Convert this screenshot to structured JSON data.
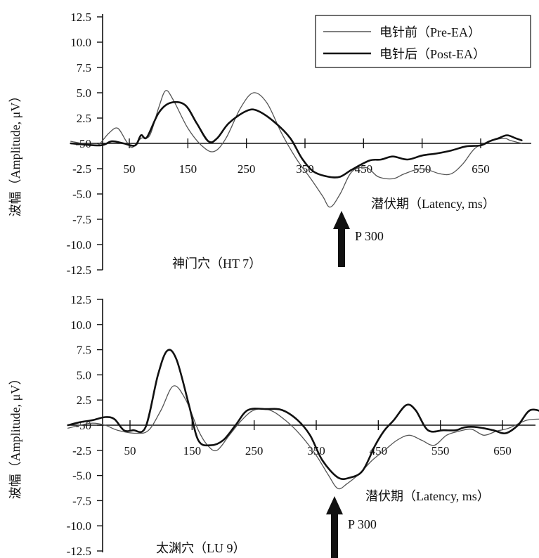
{
  "chart_data": [
    {
      "type": "line",
      "ylabel": "波幅（Amplitude, μV）",
      "xlabel": "潜伏期（Latency, ms）",
      "caption": "神门穴（HT 7）",
      "annotation": "P 300",
      "ylim": [
        -12.5,
        12.5
      ],
      "yticks": [
        "12.5",
        "10.0",
        "7.5",
        "5.0",
        "2.5",
        "-50",
        "-2.5",
        "-5.0",
        "-7.5",
        "-10.0",
        "-12.5"
      ],
      "xticks": [
        "50",
        "150",
        "250",
        "350",
        "450",
        "550",
        "650"
      ],
      "xtick_values": [
        50,
        150,
        250,
        350,
        450,
        550,
        650
      ],
      "xlim": [
        -50,
        720
      ],
      "p300_latency": 390,
      "legend": {
        "position": "top-right",
        "entries": [
          "电针前（Pre-EA）",
          "电针后（Post-EA）"
        ]
      },
      "series": [
        {
          "name": "电针前（Pre-EA）",
          "color": "#555555",
          "style": "thin",
          "points": [
            [
              -50,
              0.2
            ],
            [
              -10,
              -0.2
            ],
            [
              0,
              0
            ],
            [
              15,
              1.0
            ],
            [
              30,
              1.5
            ],
            [
              45,
              0.2
            ],
            [
              55,
              -0.4
            ],
            [
              70,
              0.5
            ],
            [
              85,
              0.8
            ],
            [
              100,
              3.5
            ],
            [
              112,
              5.2
            ],
            [
              125,
              4.3
            ],
            [
              150,
              1.5
            ],
            [
              175,
              -0.3
            ],
            [
              195,
              -0.8
            ],
            [
              215,
              0.5
            ],
            [
              240,
              3.5
            ],
            [
              262,
              5.0
            ],
            [
              285,
              4.0
            ],
            [
              310,
              1.0
            ],
            [
              335,
              -1.5
            ],
            [
              360,
              -3.5
            ],
            [
              380,
              -5.2
            ],
            [
              393,
              -6.3
            ],
            [
              410,
              -5.0
            ],
            [
              430,
              -2.8
            ],
            [
              455,
              -2.4
            ],
            [
              475,
              -3.3
            ],
            [
              500,
              -3.5
            ],
            [
              520,
              -3.0
            ],
            [
              550,
              -2.5
            ],
            [
              580,
              -3.0
            ],
            [
              600,
              -3.0
            ],
            [
              620,
              -2.0
            ],
            [
              640,
              -0.5
            ],
            [
              665,
              0.2
            ],
            [
              690,
              0.5
            ],
            [
              700,
              0.3
            ],
            [
              720,
              0.0
            ]
          ]
        },
        {
          "name": "电针后（Post-EA）",
          "color": "#111111",
          "style": "thick",
          "points": [
            [
              -50,
              0.0
            ],
            [
              0,
              -0.2
            ],
            [
              20,
              0.2
            ],
            [
              40,
              0.0
            ],
            [
              60,
              -0.2
            ],
            [
              70,
              0.8
            ],
            [
              80,
              0.6
            ],
            [
              100,
              3.0
            ],
            [
              120,
              4.0
            ],
            [
              145,
              3.8
            ],
            [
              165,
              2.0
            ],
            [
              185,
              0.2
            ],
            [
              200,
              0.5
            ],
            [
              220,
              2.0
            ],
            [
              250,
              3.2
            ],
            [
              270,
              3.2
            ],
            [
              300,
              2.0
            ],
            [
              325,
              0.5
            ],
            [
              345,
              -1.5
            ],
            [
              365,
              -2.8
            ],
            [
              390,
              -3.3
            ],
            [
              410,
              -3.3
            ],
            [
              430,
              -2.6
            ],
            [
              460,
              -1.7
            ],
            [
              480,
              -1.6
            ],
            [
              500,
              -1.3
            ],
            [
              525,
              -1.6
            ],
            [
              550,
              -1.2
            ],
            [
              575,
              -1.0
            ],
            [
              600,
              -0.7
            ],
            [
              625,
              -0.3
            ],
            [
              650,
              -0.2
            ],
            [
              665,
              0.2
            ],
            [
              680,
              0.5
            ],
            [
              695,
              0.8
            ],
            [
              710,
              0.5
            ],
            [
              720,
              0.3
            ]
          ]
        }
      ]
    },
    {
      "type": "line",
      "ylabel": "波幅（Amplitude, μV）",
      "xlabel": "潜伏期（Latency, ms）",
      "caption": "太渊穴（LU 9）",
      "annotation": "P 300",
      "ylim": [
        -12.5,
        12.5
      ],
      "yticks": [
        "12.5",
        "10.0",
        "7.5",
        "5.0",
        "2.5",
        "-50",
        "-2.5",
        "-5.0",
        "-7.5",
        "-10.0",
        "-12.5"
      ],
      "xticks": [
        "50",
        "150",
        "250",
        "350",
        "450",
        "550",
        "650"
      ],
      "xtick_values": [
        50,
        150,
        250,
        350,
        450,
        550,
        650
      ],
      "xlim": [
        -50,
        720
      ],
      "p300_latency": 385,
      "series": [
        {
          "name": "电针前（Pre-EA）",
          "color": "#555555",
          "style": "thin",
          "points": [
            [
              -50,
              -0.3
            ],
            [
              -30,
              0.0
            ],
            [
              -10,
              0.2
            ],
            [
              10,
              0.0
            ],
            [
              30,
              -0.5
            ],
            [
              60,
              -0.8
            ],
            [
              80,
              -0.5
            ],
            [
              100,
              1.5
            ],
            [
              120,
              3.9
            ],
            [
              140,
              2.5
            ],
            [
              160,
              -0.5
            ],
            [
              175,
              -2.0
            ],
            [
              190,
              -2.5
            ],
            [
              210,
              -1.0
            ],
            [
              230,
              0.5
            ],
            [
              250,
              1.5
            ],
            [
              275,
              1.5
            ],
            [
              300,
              0.5
            ],
            [
              325,
              -1.0
            ],
            [
              350,
              -3.0
            ],
            [
              370,
              -5.0
            ],
            [
              385,
              -6.3
            ],
            [
              400,
              -5.8
            ],
            [
              420,
              -4.8
            ],
            [
              440,
              -3.5
            ],
            [
              460,
              -2.5
            ],
            [
              480,
              -1.5
            ],
            [
              500,
              -1.0
            ],
            [
              520,
              -1.5
            ],
            [
              540,
              -2.0
            ],
            [
              560,
              -1.0
            ],
            [
              580,
              -0.6
            ],
            [
              600,
              -0.4
            ],
            [
              620,
              -1.0
            ],
            [
              640,
              -0.6
            ],
            [
              660,
              -0.3
            ],
            [
              690,
              0.5
            ],
            [
              720,
              0.6
            ]
          ]
        },
        {
          "name": "电针后（Post-EA）",
          "color": "#111111",
          "style": "thick",
          "points": [
            [
              -50,
              0.0
            ],
            [
              -30,
              0.3
            ],
            [
              -10,
              0.5
            ],
            [
              10,
              0.8
            ],
            [
              25,
              0.6
            ],
            [
              40,
              -0.5
            ],
            [
              55,
              -0.5
            ],
            [
              75,
              -0.2
            ],
            [
              95,
              5.0
            ],
            [
              110,
              7.4
            ],
            [
              125,
              6.5
            ],
            [
              145,
              2.0
            ],
            [
              160,
              -1.5
            ],
            [
              180,
              -2.0
            ],
            [
              200,
              -1.5
            ],
            [
              220,
              0.0
            ],
            [
              240,
              1.5
            ],
            [
              270,
              1.6
            ],
            [
              295,
              1.5
            ],
            [
              320,
              0.5
            ],
            [
              340,
              -1.0
            ],
            [
              360,
              -3.5
            ],
            [
              385,
              -5.2
            ],
            [
              405,
              -5.2
            ],
            [
              425,
              -4.5
            ],
            [
              445,
              -2.0
            ],
            [
              460,
              -0.5
            ],
            [
              475,
              0.5
            ],
            [
              495,
              2.0
            ],
            [
              510,
              1.5
            ],
            [
              530,
              -0.5
            ],
            [
              555,
              -0.5
            ],
            [
              575,
              -0.5
            ],
            [
              590,
              -0.2
            ],
            [
              610,
              -0.2
            ],
            [
              635,
              -0.5
            ],
            [
              655,
              -0.8
            ],
            [
              675,
              0.0
            ],
            [
              695,
              1.5
            ],
            [
              720,
              1.2
            ]
          ]
        }
      ]
    }
  ]
}
